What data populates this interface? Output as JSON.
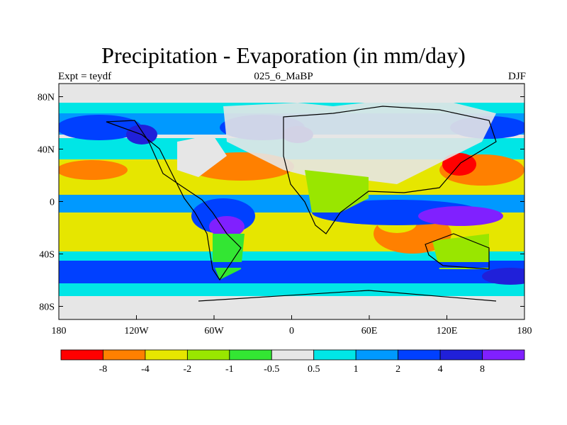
{
  "title": "Precipitation - Evaporation (in mm/day)",
  "left_label": "Expt = teydf",
  "center_label": "025_6_MaBP",
  "right_label": "DJF",
  "map": {
    "lat_ticks": [
      "80N",
      "40N",
      "0",
      "40S",
      "80S"
    ],
    "lat_values": [
      80,
      40,
      0,
      -40,
      -80
    ],
    "lon_ticks": [
      "180",
      "120W",
      "60W",
      "0",
      "60E",
      "120E",
      "180"
    ],
    "lon_values": [
      -180,
      -120,
      -60,
      0,
      60,
      120,
      180
    ]
  },
  "colorbar": {
    "colors": [
      "#ff0000",
      "#ff8000",
      "#e6e600",
      "#99e600",
      "#33e633",
      "#e6e6e6",
      "#00e6e6",
      "#0099ff",
      "#0040ff",
      "#2020d9",
      "#8020ff"
    ],
    "labels": [
      "-8",
      "-4",
      "-2",
      "-1",
      "-0.5",
      "0.5",
      "1",
      "2",
      "4",
      "8"
    ]
  }
}
